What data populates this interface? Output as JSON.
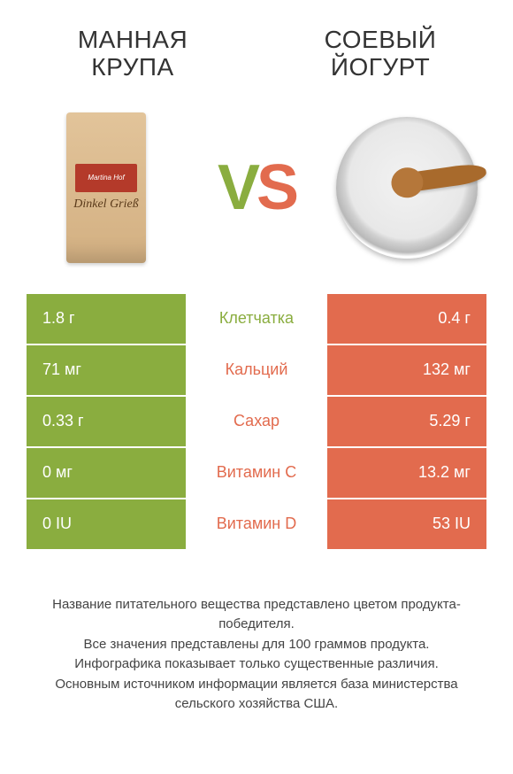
{
  "header": {
    "left_title": "МАННАЯ КРУПА",
    "right_title": "СОЕВЫЙ ЙОГУРТ"
  },
  "vs": {
    "v": "V",
    "s": "S"
  },
  "package": {
    "brand": "Martina Hof",
    "name": "Dinkel Grieß"
  },
  "colors": {
    "green": "#8aad3f",
    "orange": "#e26b4e",
    "text": "#333333",
    "background": "#ffffff"
  },
  "rows": [
    {
      "left": "1.8 г",
      "label": "Клетчатка",
      "right": "0.4 г",
      "winner": "left"
    },
    {
      "left": "71 мг",
      "label": "Кальций",
      "right": "132 мг",
      "winner": "right"
    },
    {
      "left": "0.33 г",
      "label": "Сахар",
      "right": "5.29 г",
      "winner": "right"
    },
    {
      "left": "0 мг",
      "label": "Витамин C",
      "right": "13.2 мг",
      "winner": "right"
    },
    {
      "left": "0 IU",
      "label": "Витамин D",
      "right": "53 IU",
      "winner": "right"
    }
  ],
  "footer": {
    "line1": "Название питательного вещества представлено цветом продукта-победителя.",
    "line2": "Все значения представлены для 100 граммов продукта.",
    "line3": "Инфографика показывает только существенные различия.",
    "line4": "Основным источником информации является база министерства сельского хозяйства США."
  }
}
